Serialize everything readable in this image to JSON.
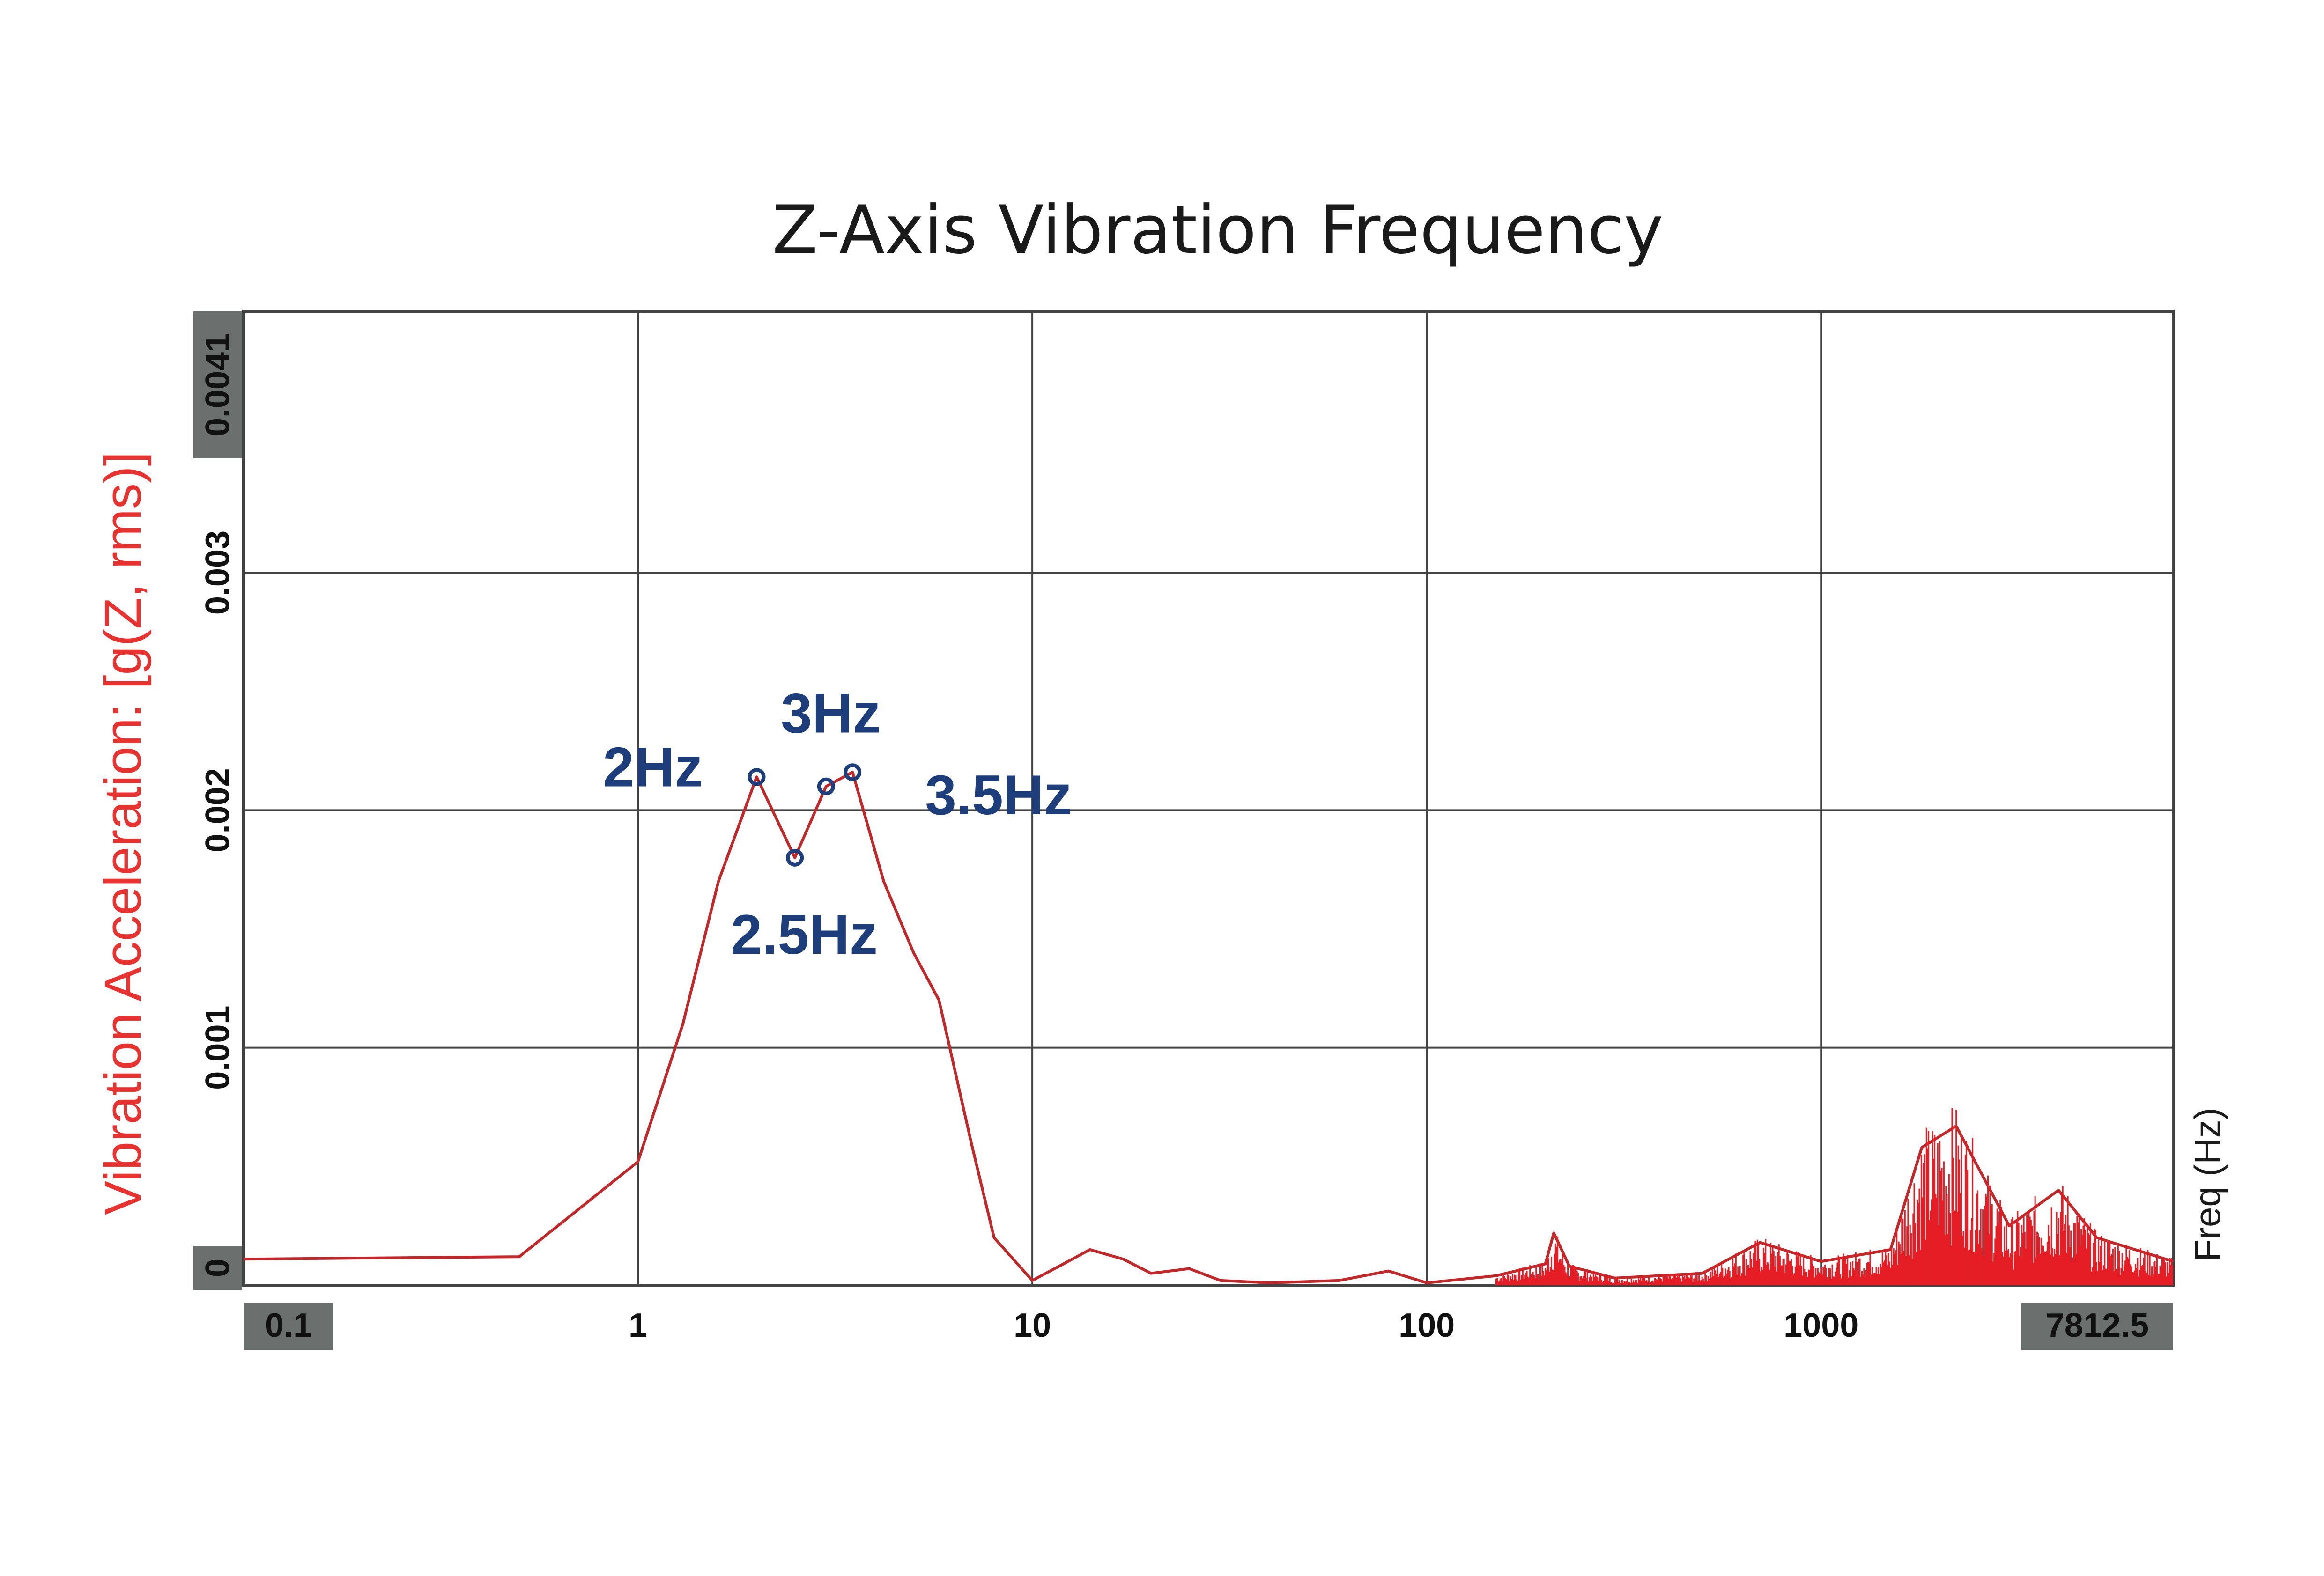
{
  "chart_data": {
    "type": "line",
    "title": "Z-Axis Vibration Frequency",
    "ylabel": "Vibration Acceleration: [g(Z, rms)]",
    "xlabel": "Freq (Hz)",
    "x_scale": "log",
    "xlim": [
      0.1,
      7812.5
    ],
    "ylim": [
      0,
      0.0041
    ],
    "x_ticks": [
      {
        "value": 0.1,
        "label": "0.1",
        "boxed": true
      },
      {
        "value": 1,
        "label": "1",
        "boxed": false
      },
      {
        "value": 10,
        "label": "10",
        "boxed": false
      },
      {
        "value": 100,
        "label": "100",
        "boxed": false
      },
      {
        "value": 1000,
        "label": "1000",
        "boxed": false
      },
      {
        "value": 7812.5,
        "label": "7812.5",
        "boxed": true
      }
    ],
    "y_ticks": [
      {
        "value": 0,
        "label": "0",
        "boxed": true
      },
      {
        "value": 0.001,
        "label": "0.001",
        "boxed": false
      },
      {
        "value": 0.002,
        "label": "0.002",
        "boxed": false
      },
      {
        "value": 0.003,
        "label": "0.003",
        "boxed": false
      },
      {
        "value": 0.0041,
        "label": "0.0041",
        "boxed": true
      }
    ],
    "grid": true,
    "colors": {
      "series": "#c0282a",
      "series_hf": "#e51d24",
      "annotation": "#1d3e7a",
      "ylabel": "#e8322f",
      "grid": "#444444",
      "tickbox": "#6b6f6e"
    },
    "series": [
      {
        "values_xy": [
          [
            0.1,
            0.00011
          ],
          [
            0.5,
            0.00012
          ],
          [
            1.0,
            0.00052
          ],
          [
            1.3,
            0.0011
          ],
          [
            1.6,
            0.0017
          ],
          [
            2.0,
            0.00214
          ],
          [
            2.5,
            0.0018
          ],
          [
            3.0,
            0.0021
          ],
          [
            3.5,
            0.00216
          ],
          [
            4.2,
            0.0017
          ],
          [
            5.0,
            0.0014
          ],
          [
            5.8,
            0.0012
          ],
          [
            7.0,
            0.0006
          ],
          [
            8.0,
            0.0002
          ],
          [
            10.0,
            2e-05
          ],
          [
            12.0,
            9e-05
          ],
          [
            14.0,
            0.00015
          ],
          [
            17.0,
            0.00011
          ],
          [
            20.0,
            5e-05
          ],
          [
            25.0,
            7e-05
          ],
          [
            30.0,
            2e-05
          ],
          [
            40.0,
            1e-05
          ],
          [
            60.0,
            2e-05
          ],
          [
            80.0,
            6e-05
          ],
          [
            100.0,
            1e-05
          ],
          [
            150.0,
            4e-05
          ],
          [
            200.0,
            9e-05
          ],
          [
            210.0,
            0.00022
          ],
          [
            230.0,
            8e-05
          ],
          [
            300.0,
            3e-05
          ],
          [
            500.0,
            5e-05
          ],
          [
            700.0,
            0.00018
          ],
          [
            1000.0,
            0.0001
          ],
          [
            1500.0,
            0.00015
          ],
          [
            1800.0,
            0.00058
          ],
          [
            2200.0,
            0.00067
          ],
          [
            3000.0,
            0.00025
          ],
          [
            4000.0,
            0.0004
          ],
          [
            5000.0,
            0.0002
          ],
          [
            7812.5,
            0.0001
          ]
        ]
      }
    ],
    "annotations": [
      {
        "label": "2Hz",
        "x": 2.0,
        "y": 0.00214,
        "text_pos": "left"
      },
      {
        "label": "2.5Hz",
        "x": 2.5,
        "y": 0.0018,
        "text_pos": "below"
      },
      {
        "label": "3Hz",
        "x": 3.0,
        "y": 0.0021,
        "text_pos": "above"
      },
      {
        "label": "3.5Hz",
        "x": 3.5,
        "y": 0.00216,
        "text_pos": "right"
      }
    ]
  }
}
